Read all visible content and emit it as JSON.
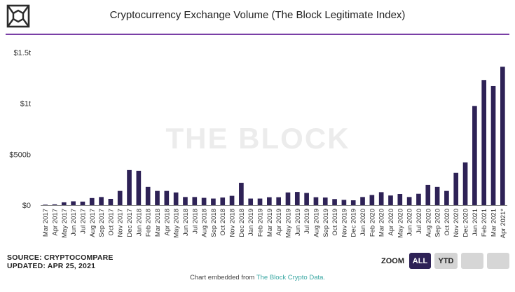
{
  "header": {
    "title": "Cryptocurrency Exchange Volume (The Block Legitimate Index)"
  },
  "watermark": "THE BLOCK",
  "footer": {
    "source": "SOURCE: CRYPTOCOMPARE",
    "updated": "UPDATED: APR 25, 2021",
    "embed_prefix": "Chart embedded from",
    "embed_link": "The Block Crypto Data."
  },
  "zoom": {
    "label": "ZOOM",
    "all": "ALL",
    "ytd": "YTD"
  },
  "colors": {
    "bar": "#2e2256",
    "accent_rule": "#7a3fa6",
    "link": "#3aa7a3",
    "active_button": "#2e2256",
    "inactive_button": "#d4d4d4"
  },
  "chart_data": {
    "type": "bar",
    "title": "Cryptocurrency Exchange Volume (The Block Legitimate Index)",
    "xlabel": "",
    "ylabel": "",
    "ylim": [
      0,
      1500000000000
    ],
    "yticks": [
      {
        "value": 0,
        "label": "$0"
      },
      {
        "value": 500000000000,
        "label": "$500b"
      },
      {
        "value": 1000000000000,
        "label": "$1t"
      },
      {
        "value": 1500000000000,
        "label": "$1.5t"
      }
    ],
    "grid": false,
    "legend": "none",
    "categories": [
      "Mar 2017",
      "Apr 2017",
      "May 2017",
      "Jun 2017",
      "Jul 2017",
      "Aug 2017",
      "Sep 2017",
      "Oct 2017",
      "Nov 2017",
      "Dec 2017",
      "Jan 2018",
      "Feb 2018",
      "Mar 2018",
      "Apr 2018",
      "May 2018",
      "Jun 2018",
      "Jul 2018",
      "Aug 2018",
      "Sep 2018",
      "Oct 2018",
      "Nov 2018",
      "Dec 2018",
      "Jan 2019",
      "Feb 2019",
      "Mar 2019",
      "Apr 2019",
      "May 2019",
      "Jun 2019",
      "Jul 2019",
      "Aug 2019",
      "Sep 2019",
      "Oct 2019",
      "Nov 2019",
      "Dec 2019",
      "Jan 2020",
      "Feb 2020",
      "Mar 2020",
      "Apr 2020",
      "May 2020",
      "Jun 2020",
      "Jul 2020",
      "Aug 2020",
      "Sep 2020",
      "Oct 2020",
      "Nov 2020",
      "Dec 2020",
      "Jan 2021",
      "Feb 2021",
      "Mar 2021",
      "Apr 2021*"
    ],
    "values": [
      5000000000,
      8000000000,
      28000000000,
      38000000000,
      35000000000,
      70000000000,
      80000000000,
      62000000000,
      140000000000,
      345000000000,
      338000000000,
      180000000000,
      140000000000,
      140000000000,
      125000000000,
      80000000000,
      80000000000,
      72000000000,
      65000000000,
      75000000000,
      92000000000,
      220000000000,
      65000000000,
      65000000000,
      78000000000,
      78000000000,
      125000000000,
      130000000000,
      120000000000,
      78000000000,
      75000000000,
      60000000000,
      52000000000,
      48000000000,
      80000000000,
      100000000000,
      128000000000,
      95000000000,
      110000000000,
      80000000000,
      112000000000,
      200000000000,
      180000000000,
      140000000000,
      318000000000,
      420000000000,
      975000000000,
      1230000000000,
      1170000000000,
      1360000000000
    ]
  }
}
